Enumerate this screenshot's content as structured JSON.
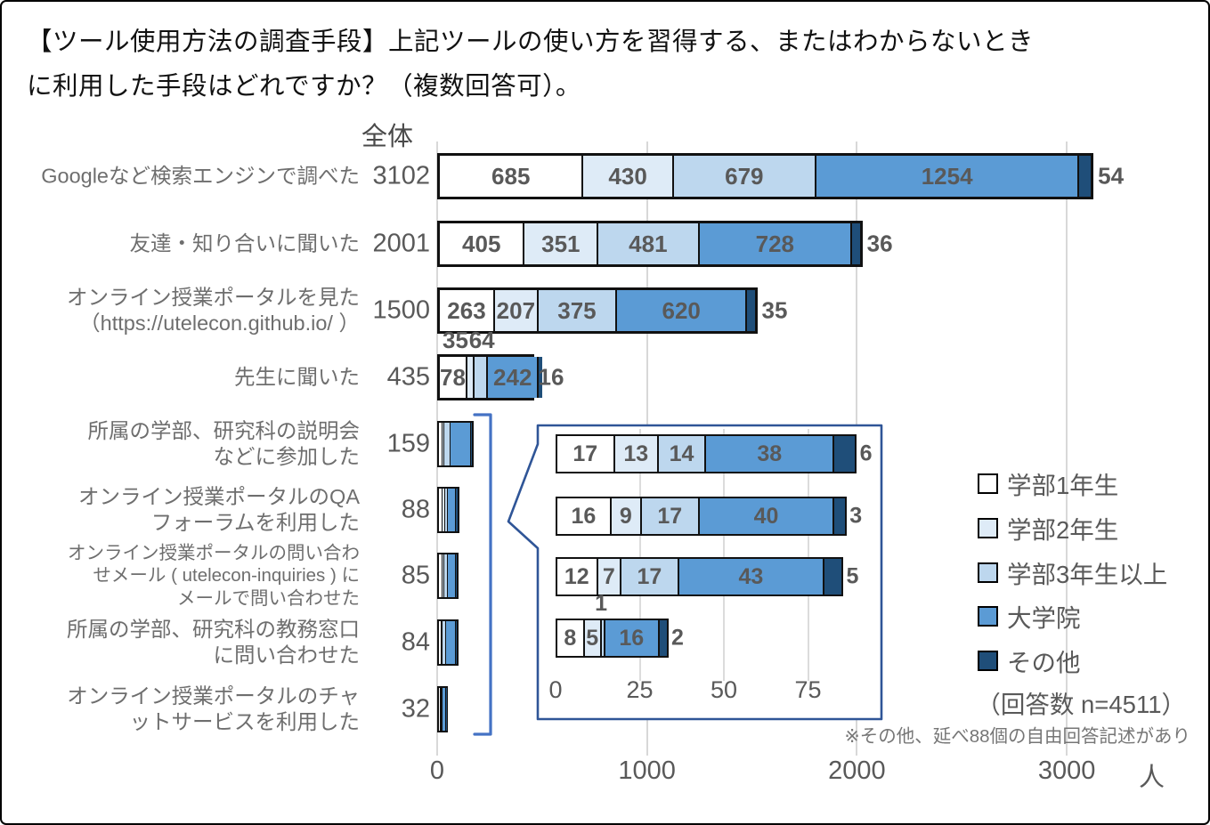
{
  "title": {
    "line1": "【ツール使用方法の調査手段】上記ツールの使い方を習得する、またはわからないとき",
    "line2": "に利用した手段はどれですか？（複数回答可）。"
  },
  "chart_data": {
    "type": "bar",
    "stacked": true,
    "orientation": "horizontal",
    "column_header": "全体",
    "series_names": [
      "学部1年生",
      "学部2年生",
      "学部3年生以上",
      "大学院",
      "その他"
    ],
    "series_colors": [
      "#FFFFFF",
      "#DEEBF7",
      "#BDD7EE",
      "#5B9BD5",
      "#1F4E79"
    ],
    "x_axis": {
      "ticks": [
        0,
        1000,
        2000,
        3000
      ],
      "unit": "人"
    },
    "rows": [
      {
        "label": "Googleなど検索エンジンで調べた",
        "total": 3102,
        "values": [
          685,
          430,
          679,
          1254,
          54
        ],
        "label_pos": [
          "in",
          "in",
          "in",
          "in",
          "out"
        ]
      },
      {
        "label": "友達・知り合いに聞いた",
        "total": 2001,
        "values": [
          405,
          351,
          481,
          728,
          36
        ],
        "label_pos": [
          "in",
          "in",
          "in",
          "in",
          "out"
        ]
      },
      {
        "label": "オンライン授業ポータルを見た\n（https://utelecon.github.io/ ）",
        "total": 1500,
        "values": [
          263,
          207,
          375,
          620,
          35
        ],
        "label_pos": [
          "in",
          "in",
          "in",
          "in",
          "out"
        ]
      },
      {
        "label": "先生に聞いた",
        "total": 435,
        "values": [
          78,
          35,
          64,
          242,
          16
        ],
        "label_pos": [
          "in",
          "above",
          "above",
          "in",
          "out"
        ]
      },
      {
        "label": "所属の学部、研究科の説明会\nなどに参加した",
        "total": 159,
        "values": [
          18,
          8,
          30,
          95,
          8
        ],
        "values_estimated": true,
        "label_pos": [
          "none",
          "none",
          "none",
          "none",
          "none"
        ]
      },
      {
        "label": "オンライン授業ポータルのQA\nフォーラムを利用した",
        "total": 88,
        "values": [
          17,
          13,
          14,
          38,
          6
        ],
        "label_pos": [
          "none",
          "none",
          "none",
          "none",
          "none"
        ]
      },
      {
        "label": "オンライン授業ポータルの問い合わ\nせメール ( utelecon-inquiries ) に\nメールで問い合わせた",
        "total": 85,
        "values": [
          16,
          9,
          17,
          40,
          3
        ],
        "label_pos": [
          "none",
          "none",
          "none",
          "none",
          "none"
        ]
      },
      {
        "label": "所属の学部、研究科の教務窓口\nに問い合わせた",
        "total": 84,
        "values": [
          12,
          7,
          17,
          43,
          5
        ],
        "label_pos": [
          "none",
          "none",
          "none",
          "none",
          "none"
        ]
      },
      {
        "label": "オンライン授業ポータルのチャ\nットサービスを利用した",
        "total": 32,
        "values": [
          8,
          5,
          1,
          16,
          2
        ],
        "label_pos": [
          "none",
          "none",
          "none",
          "none",
          "none"
        ]
      }
    ],
    "inset": {
      "x_axis": {
        "ticks": [
          0,
          25,
          50,
          75
        ]
      },
      "rows": [
        {
          "total": 88,
          "values": [
            17,
            13,
            14,
            38,
            6
          ],
          "label_pos": [
            "in",
            "in",
            "in",
            "in",
            "out"
          ]
        },
        {
          "total": 85,
          "values": [
            16,
            9,
            17,
            40,
            3
          ],
          "label_pos": [
            "in",
            "in",
            "in",
            "in",
            "out"
          ]
        },
        {
          "total": 84,
          "values": [
            12,
            7,
            17,
            43,
            5
          ],
          "label_pos": [
            "in",
            "in",
            "in",
            "in",
            "out"
          ]
        },
        {
          "total": 32,
          "values": [
            8,
            5,
            1,
            16,
            2
          ],
          "label_pos": [
            "in",
            "in",
            "above",
            "in",
            "out"
          ]
        }
      ]
    },
    "legend": {
      "items": [
        {
          "label": "学部1年生",
          "color": "#FFFFFF"
        },
        {
          "label": "学部2年生",
          "color": "#DEEBF7"
        },
        {
          "label": "学部3年生以上",
          "color": "#BDD7EE"
        },
        {
          "label": "大学院",
          "color": "#5B9BD5"
        },
        {
          "label": "その他",
          "color": "#1F4E79"
        }
      ]
    },
    "annotations": {
      "respondents": "（回答数 n=4511）",
      "note": "※その他、延べ88個の自由回答記述があり"
    },
    "accent_colors": {
      "bracket": "#4472C4",
      "callout_border": "#2F5597",
      "gridline": "#D8D8D8"
    }
  }
}
